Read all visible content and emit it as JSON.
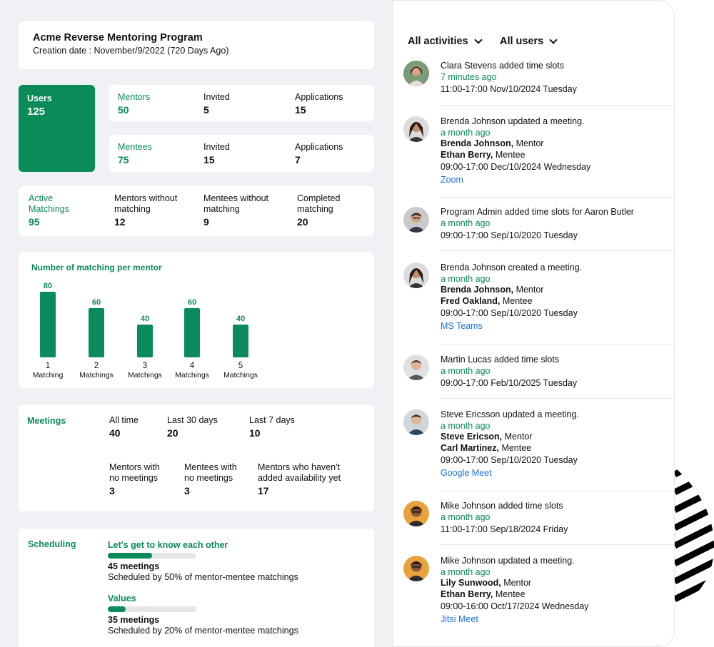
{
  "program": {
    "title": "Acme Reverse Mentoring Program",
    "creation": "Creation date : November/9/2022  (720 Days Ago)"
  },
  "users": {
    "label": "Users",
    "value": "125"
  },
  "mentors": {
    "label": "Mentors",
    "value": "50",
    "invited_label": "Invited",
    "invited_value": "5",
    "applications_label": "Applications",
    "applications_value": "15"
  },
  "mentees": {
    "label": "Mentees",
    "value": "75",
    "invited_label": "Invited",
    "invited_value": "15",
    "applications_label": "Applications",
    "applications_value": "7"
  },
  "matching": {
    "active_label_1": "Active",
    "active_label_2": "Matchings",
    "active_value": "95",
    "mentors_without_1": "Mentors without",
    "mentors_without_2": "matching",
    "mentors_without_value": "12",
    "mentees_without_1": "Mentees without",
    "mentees_without_2": "matching",
    "mentees_without_value": "9",
    "completed_1": "Completed",
    "completed_2": "matching",
    "completed_value": "20"
  },
  "chart_data": {
    "type": "bar",
    "title": "Number of matching per mentor",
    "categories": [
      "1",
      "2",
      "3",
      "4",
      "5"
    ],
    "category_sub": "Matchings",
    "first_sub": "Matching",
    "values": [
      80,
      60,
      40,
      60,
      40
    ],
    "color": "#0b8a5a"
  },
  "meetings": {
    "label": "Meetings",
    "all_time_label": "All time",
    "all_time_value": "40",
    "last30_label": "Last 30 days",
    "last30_value": "20",
    "last7_label": "Last 7 days",
    "last7_value": "10",
    "mentors_no_1": "Mentors with",
    "mentors_no_2": "no meetings",
    "mentors_no_value": "3",
    "mentees_no_1": "Mentees with",
    "mentees_no_2": "no meetings",
    "mentees_no_value": "3",
    "no_avail_1": "Mentors who haven't",
    "no_avail_2": "added availability yet",
    "no_avail_value": "17"
  },
  "scheduling": {
    "label": "Scheduling",
    "items": [
      {
        "title": "Let's get to know each other",
        "progress": 0.5,
        "meetings": "45 meetings",
        "sub": "Scheduled by 50% of mentor-mentee matchings"
      },
      {
        "title": "Values",
        "progress": 0.2,
        "meetings": "35 meetings",
        "sub": "Scheduled by 20% of mentor-mentee matchings"
      }
    ]
  },
  "filters": {
    "activities": "All activities",
    "users": "All users"
  },
  "activities": [
    {
      "title": "Clara Stevens added time slots",
      "ago": "7 minutes ago",
      "time": "11:00-17:00  Nov/10/2024 Tuesday"
    },
    {
      "title": "Brenda Johnson updated a meeting.",
      "ago": "a month ago",
      "p1name": "Brenda Johnson,",
      "p1role": " Mentor",
      "p2name": "Ethan Berry,",
      "p2role": " Mentee",
      "time": "09:00-17:00  Dec/10/2024 Wednesday",
      "link": "Zoom"
    },
    {
      "title": "Program Admin added time slots for Aaron Butler",
      "ago": "a month ago",
      "time": "09:00-17:00  Sep/10/2020 Tuesday"
    },
    {
      "title": "Brenda Johnson created a meeting.",
      "ago": "a month ago",
      "p1name": "Brenda Johnson,",
      "p1role": " Mentor",
      "p2name": "Fred Oakland,",
      "p2role": " Mentee",
      "time": "09:00-17:00  Sep/10/2020 Tuesday",
      "link": "MS Teams"
    },
    {
      "title": "Martin Lucas added time slots",
      "ago": "a month ago",
      "time": "09:00-17:00  Feb/10/2025 Tuesday"
    },
    {
      "title": "Steve Ericsson updated a meeting.",
      "ago": "a month ago",
      "p1name": "Steve Ericson,",
      "p1role": " Mentor",
      "p2name": "Carl Martinez,",
      "p2role": " Mentee",
      "time": "09:00-17:00  Sep/10/2020 Tuesday",
      "link": "Google Meet"
    },
    {
      "title": "Mike Johnson added time slots",
      "ago": "a month ago",
      "time": "11:00-17:00  Sep/18/2024 Friday"
    },
    {
      "title": "Mike Johnson updated a meeting.",
      "ago": "a month ago",
      "p1name": "Lily Sunwood,",
      "p1role": " Mentor",
      "p2name": "Ethan Berry,",
      "p2role": " Mentee",
      "time": "09:00-16:00  Oct/17/2024 Wednesday",
      "link": "Jitsi Meet"
    }
  ]
}
